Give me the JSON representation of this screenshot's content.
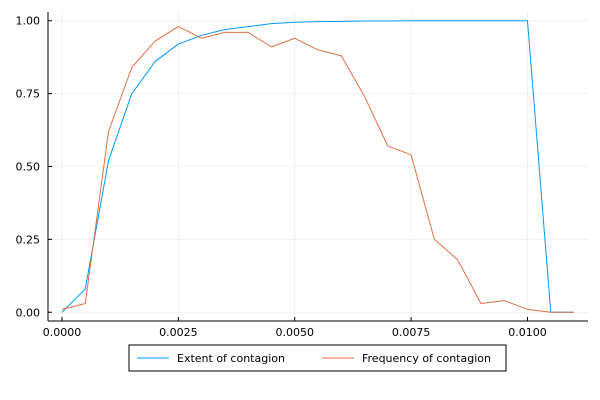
{
  "chart_data": {
    "type": "line",
    "title": "",
    "xlabel": "",
    "ylabel": "",
    "xlim": [
      -0.0003,
      0.0113
    ],
    "ylim": [
      -0.03,
      1.03
    ],
    "xticks": [
      {
        "value": 0.0,
        "label": "0.0000"
      },
      {
        "value": 0.0025,
        "label": "0.0025"
      },
      {
        "value": 0.005,
        "label": "0.0050"
      },
      {
        "value": 0.0075,
        "label": "0.0075"
      },
      {
        "value": 0.01,
        "label": "0.0100"
      }
    ],
    "yticks": [
      {
        "value": 0.0,
        "label": "0.00"
      },
      {
        "value": 0.25,
        "label": "0.25"
      },
      {
        "value": 0.5,
        "label": "0.50"
      },
      {
        "value": 0.75,
        "label": "0.75"
      },
      {
        "value": 1.0,
        "label": "1.00"
      }
    ],
    "grid": true,
    "legend_position": "bottom",
    "x": [
      0.0,
      0.0005,
      0.001,
      0.0015,
      0.002,
      0.0025,
      0.003,
      0.0035,
      0.004,
      0.0045,
      0.005,
      0.0055,
      0.006,
      0.0065,
      0.007,
      0.0075,
      0.008,
      0.0085,
      0.009,
      0.0095,
      0.01,
      0.0105,
      0.011
    ],
    "series": [
      {
        "name": "Extent of contagion",
        "color": "#009AFA",
        "values": [
          0.0,
          0.08,
          0.52,
          0.75,
          0.86,
          0.92,
          0.95,
          0.97,
          0.98,
          0.99,
          0.995,
          0.997,
          0.998,
          0.999,
          0.999,
          1.0,
          1.0,
          1.0,
          1.0,
          1.0,
          1.0,
          0.0,
          0.0
        ]
      },
      {
        "name": "Frequency of contagion",
        "color": "#E36F47",
        "values": [
          0.01,
          0.03,
          0.62,
          0.84,
          0.93,
          0.98,
          0.94,
          0.96,
          0.96,
          0.91,
          0.94,
          0.9,
          0.88,
          0.74,
          0.57,
          0.54,
          0.25,
          0.18,
          0.03,
          0.04,
          0.01,
          0.0,
          0.0
        ]
      }
    ]
  }
}
